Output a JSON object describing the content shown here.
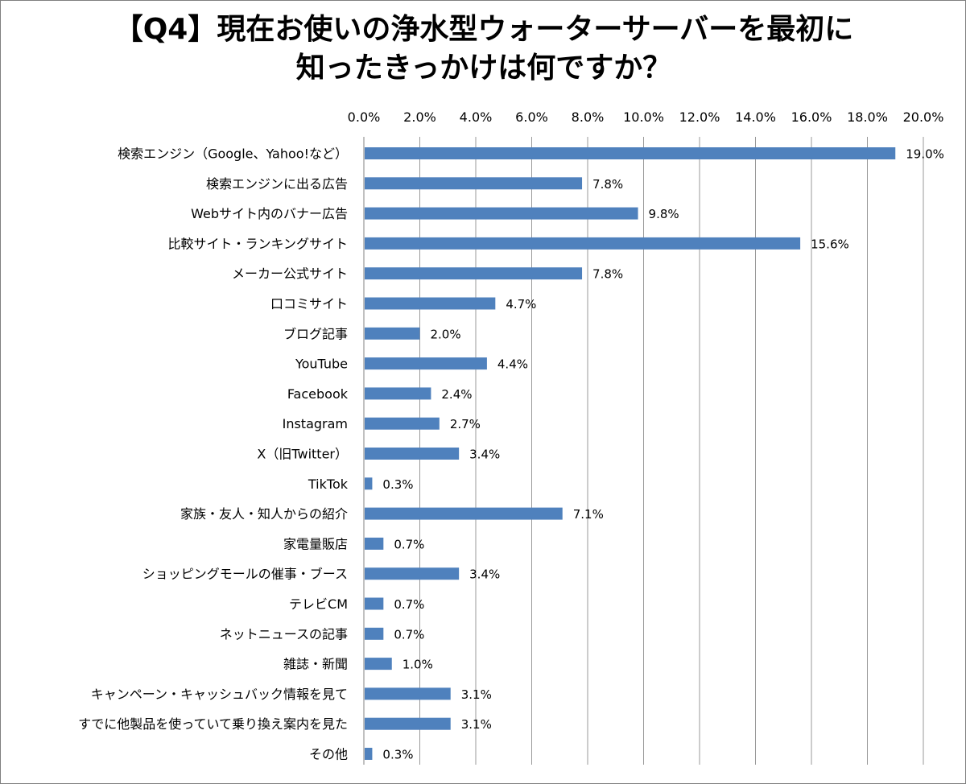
{
  "chart_data": {
    "type": "bar",
    "orientation": "horizontal",
    "title_lines": [
      "【Q4】現在お使いの浄水型ウォーターサーバーを最初に",
      "知ったきっかけは何ですか？"
    ],
    "categories": [
      "検索エンジン（Google、Yahoo!など）",
      "検索エンジンに出る広告",
      "Webサイト内のバナー広告",
      "比較サイト・ランキングサイト",
      "メーカー公式サイト",
      "口コミサイト",
      "ブログ記事",
      "YouTube",
      "Facebook",
      "Instagram",
      "X（旧Twitter）",
      "TikTok",
      "家族・友人・知人からの紹介",
      "家電量販店",
      "ショッピングモールの催事・ブース",
      "テレビCM",
      "ネットニュースの記事",
      "雑誌・新聞",
      "キャンペーン・キャッシュバック情報を見て",
      "すでに他製品を使っていて乗り換え案内を見た",
      "その他"
    ],
    "values": [
      19.0,
      7.8,
      9.8,
      15.6,
      7.8,
      4.7,
      2.0,
      4.4,
      2.4,
      2.7,
      3.4,
      0.3,
      7.1,
      0.7,
      3.4,
      0.7,
      0.7,
      1.0,
      3.1,
      3.1,
      0.3
    ],
    "data_labels": [
      "19.0%",
      "7.8%",
      "9.8%",
      "15.6%",
      "7.8%",
      "4.7%",
      "2.0%",
      "4.4%",
      "2.4%",
      "2.7%",
      "3.4%",
      "0.3%",
      "7.1%",
      "0.7%",
      "3.4%",
      "0.7%",
      "0.7%",
      "1.0%",
      "3.1%",
      "3.1%",
      "0.3%"
    ],
    "xlim": [
      0,
      20
    ],
    "x_ticks": [
      0,
      2,
      4,
      6,
      8,
      10,
      12,
      14,
      16,
      18,
      20
    ],
    "x_tick_labels": [
      "0.0%",
      "2.0%",
      "4.0%",
      "6.0%",
      "8.0%",
      "10.0%",
      "12.0%",
      "14.0%",
      "16.0%",
      "18.0%",
      "20.0%"
    ],
    "x_axis_position": "top",
    "grid": true,
    "legend": "none",
    "colors": {
      "bar": "#4f81bd",
      "grid": "#999999",
      "axis": "#808080",
      "text": "#000000"
    }
  }
}
